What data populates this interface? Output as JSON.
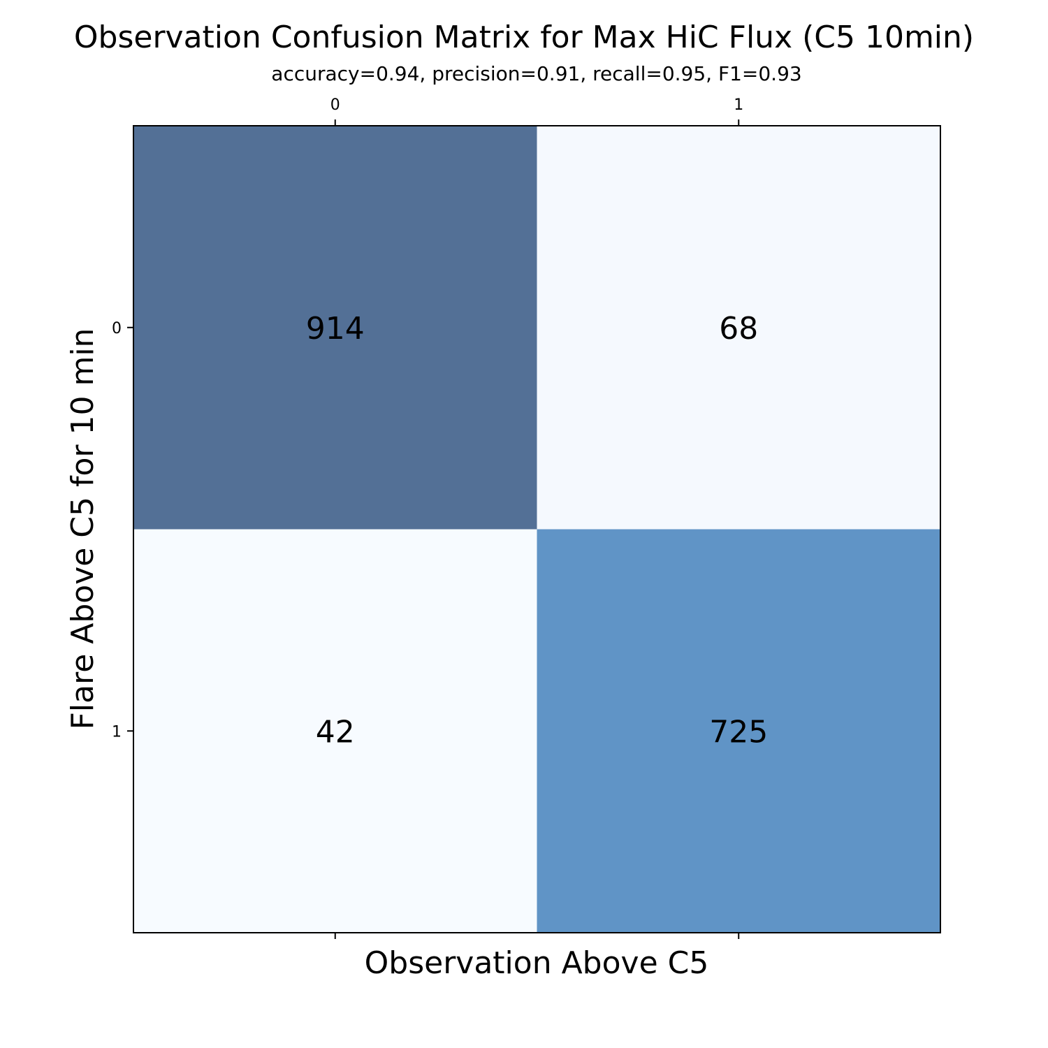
{
  "chart_data": {
    "type": "heatmap",
    "title": "Observation Confusion Matrix for Max HiC Flux (C5 10min)",
    "subtitle": "accuracy=0.94, precision=0.91, recall=0.95, F1=0.93",
    "xlabel": "Observation Above C5",
    "ylabel": "Flare Above C5 for 10 min",
    "x_ticks": [
      "0",
      "1"
    ],
    "y_ticks": [
      "0",
      "1"
    ],
    "matrix": [
      [
        914,
        68
      ],
      [
        42,
        725
      ]
    ],
    "cell_labels": [
      [
        "914",
        "68"
      ],
      [
        "42",
        "725"
      ]
    ],
    "cell_colors": [
      [
        "#537096",
        "#f5f9fe"
      ],
      [
        "#f7fbff",
        "#6094c6"
      ]
    ],
    "x_tick_position": "top-and-bottom",
    "grid": false,
    "colorbar": false
  }
}
